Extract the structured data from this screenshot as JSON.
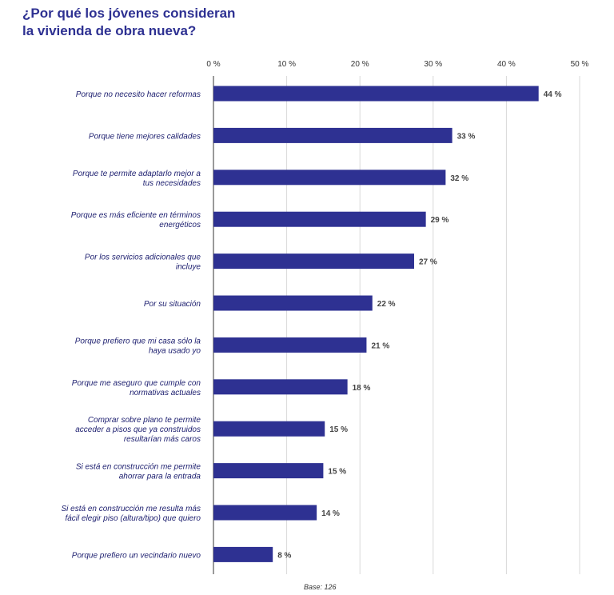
{
  "title_lines": [
    "¿Por qué los jóvenes consideran",
    "la vivienda de obra nueva?"
  ],
  "base_note": "Base: 126",
  "colors": {
    "bar": "#2e3192",
    "title": "#2e3192",
    "grid": "#d9d9d9",
    "axis": "#9a9a9a"
  },
  "chart_data": {
    "type": "bar",
    "orientation": "horizontal",
    "title": "¿Por qué los jóvenes consideran la vivienda de obra nueva?",
    "x_ticks": [
      "0 %",
      "10 %",
      "20 %",
      "30 %",
      "40 %",
      "50 %"
    ],
    "xlim": [
      0,
      50
    ],
    "grid": true,
    "categories": [
      [
        "Porque no necesito hacer reformas"
      ],
      [
        "Porque tiene mejores calidades"
      ],
      [
        "Porque te permite adaptarlo mejor a",
        "tus necesidades"
      ],
      [
        "Porque es más eficiente en términos",
        "energéticos"
      ],
      [
        "Por los servicios adicionales que",
        "incluye"
      ],
      [
        "Por su situación"
      ],
      [
        "Porque prefiero que mi casa sólo la",
        "haya usado yo"
      ],
      [
        "Porque me aseguro que cumple con",
        "normativas actuales"
      ],
      [
        "Comprar sobre plano te permite",
        "acceder a pisos que ya construidos",
        "resultarían más caros"
      ],
      [
        "Si está en construcción me permite",
        "ahorrar para la entrada"
      ],
      [
        "Si está en construcción me resulta  más",
        "fácil elegir piso (altura/tipo) que quiero"
      ],
      [
        "Porque prefiero un vecindario nuevo"
      ]
    ],
    "values": [
      44.4,
      32.6,
      31.7,
      29.0,
      27.4,
      21.7,
      20.9,
      18.3,
      15.2,
      15.0,
      14.1,
      8.1
    ],
    "value_labels": [
      "44 %",
      "33 %",
      "32 %",
      "29 %",
      "27 %",
      "22 %",
      "21 %",
      "18 %",
      "15 %",
      "15 %",
      "14 %",
      "8 %"
    ]
  }
}
